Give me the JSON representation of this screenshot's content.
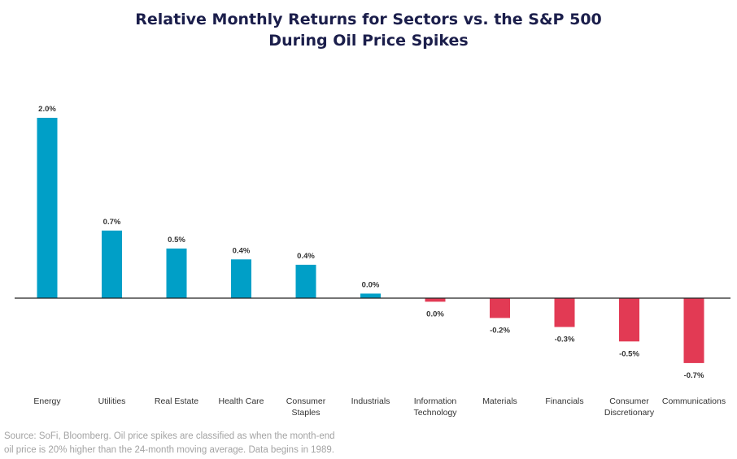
{
  "title_line1": "Relative Monthly Returns for Sectors vs. the S&P 500",
  "title_line2": "During Oil Price Spikes",
  "source_line1": "Source: SoFi, Bloomberg. Oil price spikes are classified as when the month-end",
  "source_line2": "oil price is 20% higher than the 24-month moving average. Data begins in 1989.",
  "colors": {
    "positive": "#009fc7",
    "negative": "#e23a54",
    "axis": "#222222",
    "label": "#333333"
  },
  "chart_data": {
    "type": "bar",
    "title": "Relative Monthly Returns for Sectors vs. the S&P 500 During Oil Price Spikes",
    "xlabel": "",
    "ylabel": "",
    "grid": false,
    "legend": "none",
    "ylim": [
      -0.9,
      2.2
    ],
    "categories": [
      [
        "Energy"
      ],
      [
        "Utilities"
      ],
      [
        "Real Estate"
      ],
      [
        "Health Care"
      ],
      [
        "Consumer",
        "Staples"
      ],
      [
        "Industrials"
      ],
      [
        "Information",
        "Technology"
      ],
      [
        "Materials"
      ],
      [
        "Financials"
      ],
      [
        "Consumer",
        "Discretionary"
      ],
      [
        "Communications"
      ]
    ],
    "values": [
      2.0,
      0.75,
      0.55,
      0.43,
      0.37,
      0.05,
      -0.04,
      -0.22,
      -0.32,
      -0.48,
      -0.72
    ],
    "data_labels": [
      "2.0%",
      "0.7%",
      "0.5%",
      "0.4%",
      "0.4%",
      "0.0%",
      "0.0%",
      "-0.2%",
      "-0.3%",
      "-0.5%",
      "-0.7%"
    ]
  }
}
